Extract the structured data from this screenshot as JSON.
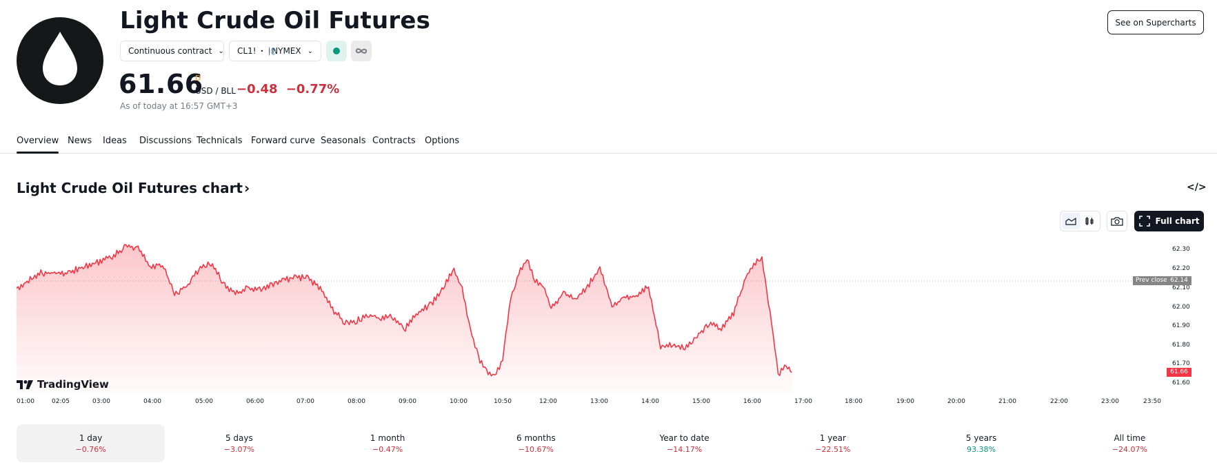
{
  "header": {
    "title": "Light Crude Oil Futures",
    "logo_icon": "oil-drop-icon",
    "contract_select": "Continuous contract",
    "symbol": "CL1!",
    "exchange": "NYMEX",
    "market_status_icon": "market-open-dot-icon",
    "market_status_color": "#089981",
    "infinity_icon": "infinity-icon",
    "price": "61.66",
    "price_flag": "D",
    "unit": "USD / BLL",
    "change_abs": "−0.48",
    "change_pct": "−0.77%",
    "as_of": "As of today at 16:57 GMT+3",
    "supercharts_button": "See on Supercharts"
  },
  "tabs": [
    {
      "label": "Overview",
      "active": true
    },
    {
      "label": "News"
    },
    {
      "label": "Ideas"
    },
    {
      "label": "Discussions"
    },
    {
      "label": "Technicals"
    },
    {
      "label": "Forward curve"
    },
    {
      "label": "Seasonals"
    },
    {
      "label": "Contracts"
    },
    {
      "label": "Options"
    }
  ],
  "chart_section": {
    "title": "Light Crude Oil Futures chart",
    "title_chevron": "›",
    "embed_icon": "</>",
    "toolbar": {
      "area_icon": "area-chart-icon",
      "candles_icon": "candlestick-icon",
      "camera_icon": "camera-icon",
      "full_chart_label": "Full chart"
    },
    "watermark": "TradingView",
    "prev_close_label": "Prev close",
    "prev_close_value": "62.14",
    "last_value": "61.66"
  },
  "colors": {
    "line": "#f23645",
    "negative": "#cc2f3c",
    "positive": "#089981",
    "prev_close_tag": "#858585"
  },
  "chart_data": {
    "type": "area",
    "title": "Light Crude Oil Futures chart",
    "xlabel": "",
    "ylabel": "USD / BLL",
    "x_ticks": [
      "01:00",
      "02:05",
      "03:00",
      "04:00",
      "05:00",
      "06:00",
      "07:00",
      "08:00",
      "09:00",
      "10:00",
      "10:50",
      "12:00",
      "13:00",
      "14:00",
      "15:00",
      "16:00",
      "17:00",
      "18:00",
      "19:00",
      "20:00",
      "21:00",
      "22:00",
      "23:00",
      "23:50"
    ],
    "y_ticks": [
      "62.30",
      "62.20",
      "62.10",
      "62.00",
      "61.90",
      "61.80",
      "61.70",
      "61.60"
    ],
    "ylim": [
      61.56,
      62.33
    ],
    "prev_close": 62.14,
    "last": 61.66,
    "grid": false,
    "series": [
      {
        "name": "CL1!",
        "x": [
          "01:00",
          "01:30",
          "02:00",
          "02:30",
          "03:00",
          "03:15",
          "03:30",
          "03:45",
          "04:00",
          "04:15",
          "04:30",
          "04:45",
          "05:00",
          "05:15",
          "05:30",
          "05:45",
          "06:00",
          "06:15",
          "06:30",
          "06:45",
          "07:00",
          "07:15",
          "07:30",
          "07:45",
          "08:00",
          "08:15",
          "08:30",
          "08:45",
          "09:00",
          "09:15",
          "09:30",
          "09:45",
          "10:00",
          "10:10",
          "10:20",
          "10:30",
          "10:40",
          "10:50",
          "11:00",
          "11:10",
          "11:20",
          "11:30",
          "11:40",
          "11:50",
          "12:00",
          "12:15",
          "12:30",
          "12:45",
          "13:00",
          "13:15",
          "13:30",
          "13:45",
          "14:00",
          "14:15",
          "14:30",
          "14:45",
          "15:00",
          "15:15",
          "15:30",
          "15:45",
          "16:00",
          "16:10",
          "16:20",
          "16:30",
          "16:40",
          "16:50",
          "16:57"
        ],
        "values": [
          62.1,
          62.18,
          62.18,
          62.22,
          62.27,
          62.32,
          62.31,
          62.21,
          62.23,
          62.07,
          62.11,
          62.2,
          62.23,
          62.13,
          62.07,
          62.1,
          62.09,
          62.12,
          62.14,
          62.16,
          62.15,
          62.1,
          61.99,
          61.92,
          61.93,
          61.96,
          61.94,
          61.95,
          61.89,
          61.97,
          62.01,
          62.09,
          62.2,
          62.1,
          61.89,
          61.74,
          61.66,
          61.63,
          61.73,
          62.05,
          62.18,
          62.25,
          62.14,
          62.12,
          62.0,
          62.07,
          62.04,
          62.11,
          62.21,
          62.0,
          62.05,
          62.06,
          62.11,
          61.79,
          61.81,
          61.78,
          61.85,
          61.92,
          61.89,
          61.97,
          62.15,
          62.23,
          62.25,
          61.98,
          61.65,
          61.69,
          61.66
        ]
      }
    ]
  },
  "periods": [
    {
      "label": "1 day",
      "value": "−0.76%",
      "sign": "neg",
      "active": true
    },
    {
      "label": "5 days",
      "value": "−3.07%",
      "sign": "neg"
    },
    {
      "label": "1 month",
      "value": "−0.47%",
      "sign": "neg"
    },
    {
      "label": "6 months",
      "value": "−10.67%",
      "sign": "neg"
    },
    {
      "label": "Year to date",
      "value": "−14.17%",
      "sign": "neg"
    },
    {
      "label": "1 year",
      "value": "−22.51%",
      "sign": "neg"
    },
    {
      "label": "5 years",
      "value": "93.38%",
      "sign": "pos"
    },
    {
      "label": "All time",
      "value": "−24.07%",
      "sign": "neg"
    }
  ]
}
